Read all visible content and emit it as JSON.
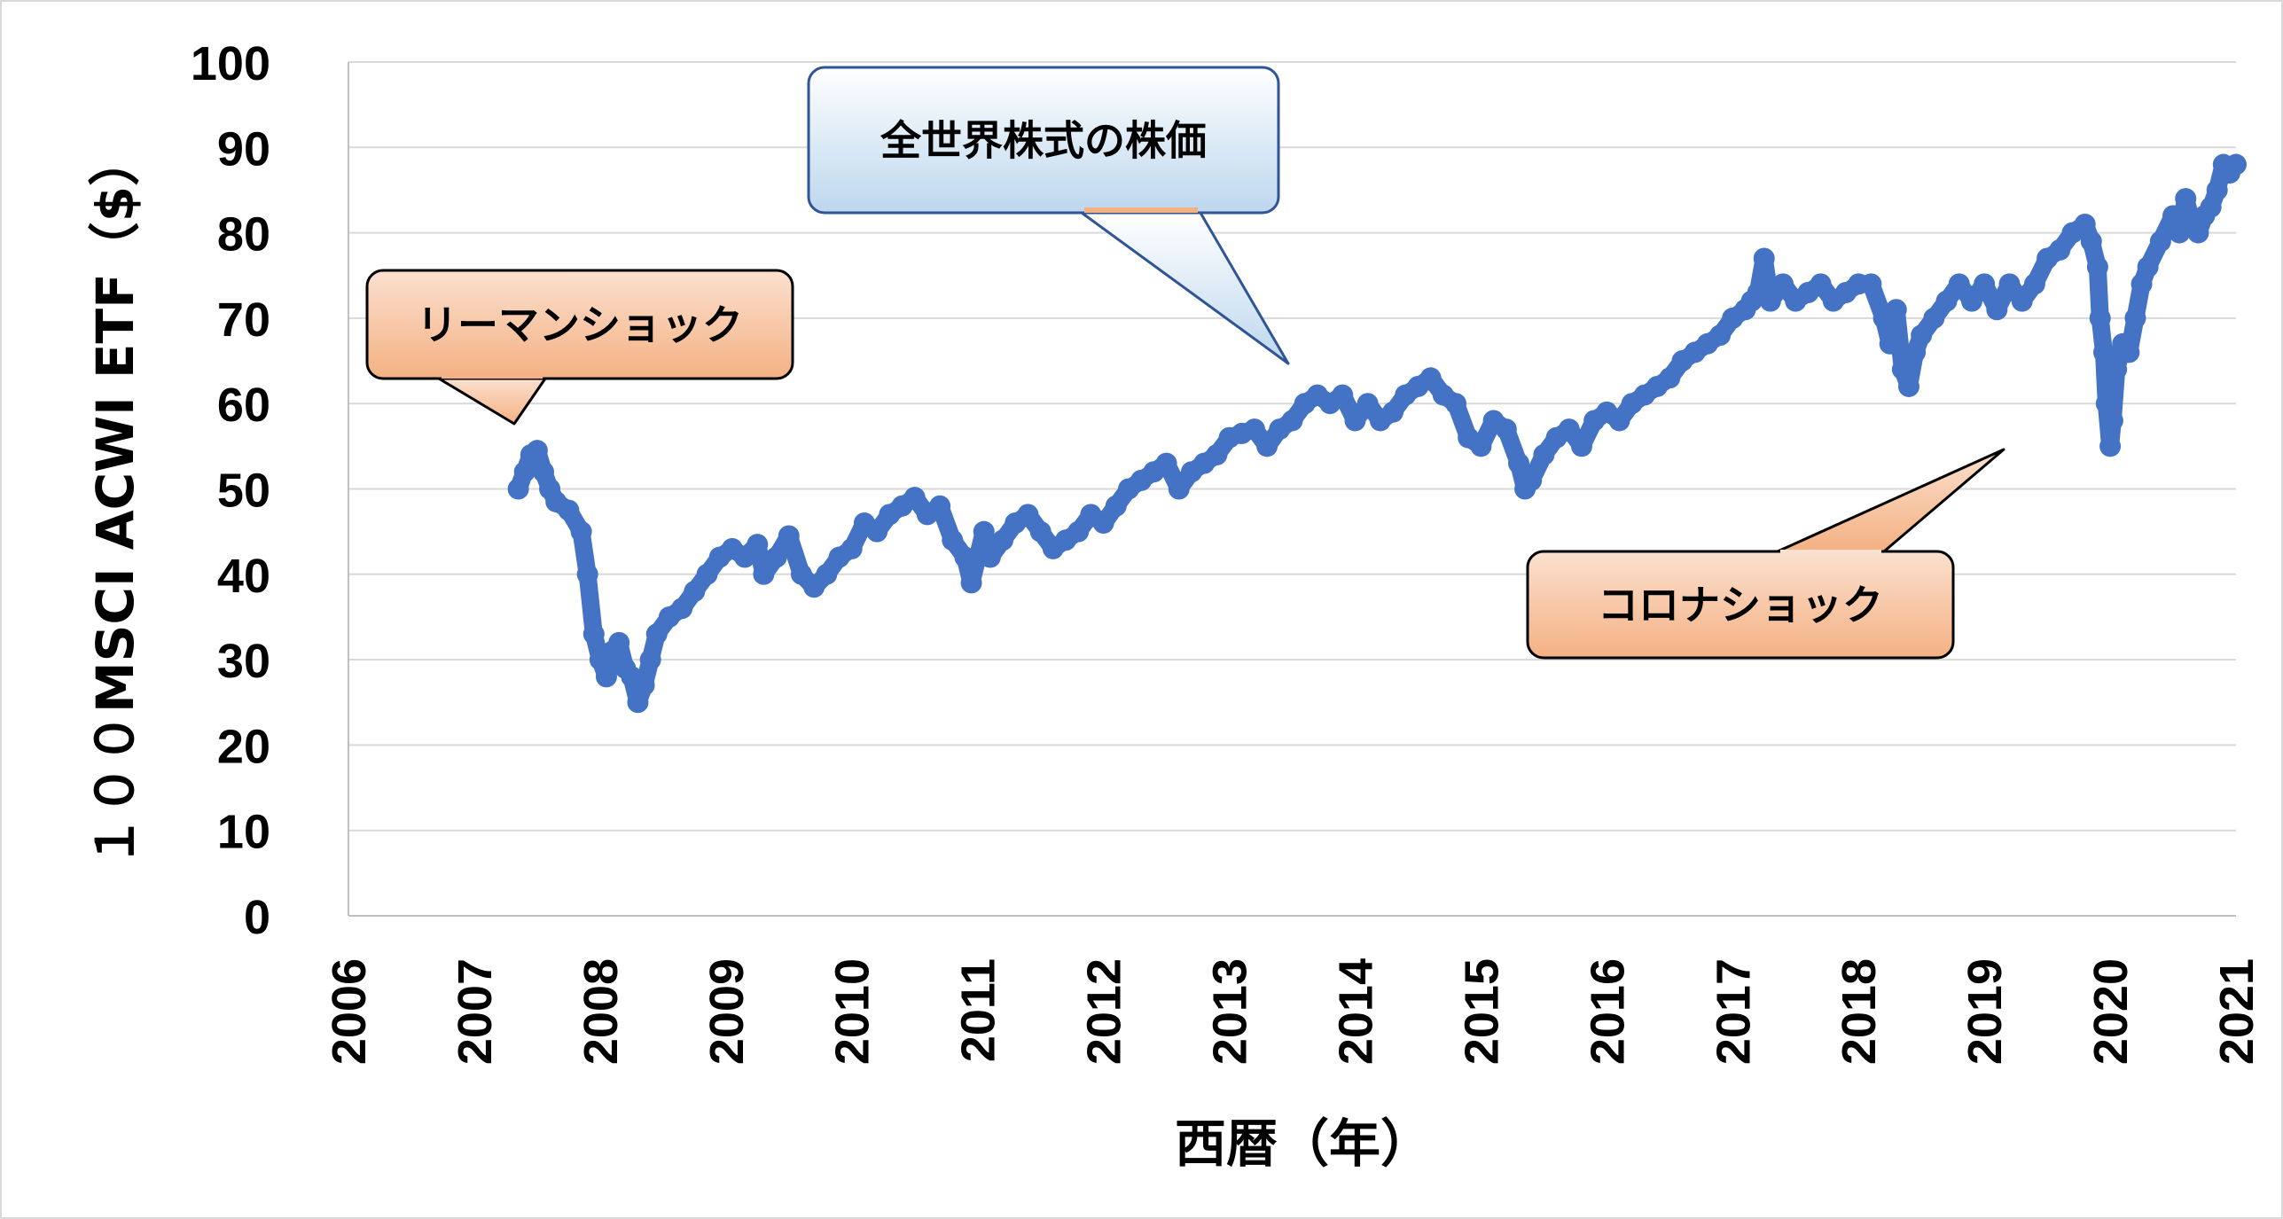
{
  "chart_data": {
    "type": "line",
    "xlabel": "西暦（年）",
    "ylabel": "１００MSCI ACWI ETF（$）",
    "xlim": [
      2006,
      2021
    ],
    "ylim": [
      0,
      100
    ],
    "x_ticks": [
      "2006",
      "2007",
      "2008",
      "2009",
      "2010",
      "2011",
      "2012",
      "2013",
      "2014",
      "2015",
      "2016",
      "2017",
      "2018",
      "2019",
      "2020",
      "2021"
    ],
    "y_ticks": [
      "0",
      "10",
      "20",
      "30",
      "40",
      "50",
      "60",
      "70",
      "80",
      "90",
      "100"
    ],
    "grid": true,
    "series_color": "#4472C4",
    "series": [
      {
        "values": [
          [
            2007.35,
            50
          ],
          [
            2007.4,
            52
          ],
          [
            2007.45,
            54
          ],
          [
            2007.5,
            54.5
          ],
          [
            2007.55,
            52
          ],
          [
            2007.6,
            50
          ],
          [
            2007.65,
            48.5
          ],
          [
            2007.75,
            47.5
          ],
          [
            2007.85,
            45
          ],
          [
            2007.9,
            40
          ],
          [
            2007.95,
            33
          ],
          [
            2008.0,
            30
          ],
          [
            2008.05,
            28
          ],
          [
            2008.1,
            31
          ],
          [
            2008.15,
            32
          ],
          [
            2008.2,
            29
          ],
          [
            2008.25,
            28
          ],
          [
            2008.3,
            25
          ],
          [
            2008.35,
            27
          ],
          [
            2008.4,
            30
          ],
          [
            2008.45,
            33
          ],
          [
            2008.55,
            35
          ],
          [
            2008.65,
            36
          ],
          [
            2008.75,
            38
          ],
          [
            2008.85,
            40
          ],
          [
            2008.95,
            42
          ],
          [
            2009.05,
            43
          ],
          [
            2009.15,
            42
          ],
          [
            2009.25,
            43.5
          ],
          [
            2009.3,
            40
          ],
          [
            2009.4,
            42
          ],
          [
            2009.5,
            44.5
          ],
          [
            2009.6,
            40
          ],
          [
            2009.7,
            38.5
          ],
          [
            2009.8,
            40
          ],
          [
            2009.9,
            42
          ],
          [
            2010.0,
            43
          ],
          [
            2010.1,
            46
          ],
          [
            2010.2,
            45
          ],
          [
            2010.3,
            47
          ],
          [
            2010.4,
            48
          ],
          [
            2010.5,
            49
          ],
          [
            2010.6,
            47
          ],
          [
            2010.7,
            48
          ],
          [
            2010.8,
            44
          ],
          [
            2010.9,
            42
          ],
          [
            2010.95,
            39
          ],
          [
            2011.0,
            42
          ],
          [
            2011.05,
            45
          ],
          [
            2011.1,
            42
          ],
          [
            2011.2,
            44
          ],
          [
            2011.3,
            46
          ],
          [
            2011.4,
            47
          ],
          [
            2011.5,
            45
          ],
          [
            2011.6,
            43
          ],
          [
            2011.7,
            44
          ],
          [
            2011.8,
            45
          ],
          [
            2011.9,
            47
          ],
          [
            2012.0,
            46
          ],
          [
            2012.1,
            48
          ],
          [
            2012.2,
            50
          ],
          [
            2012.3,
            51
          ],
          [
            2012.4,
            52
          ],
          [
            2012.5,
            53
          ],
          [
            2012.6,
            50
          ],
          [
            2012.7,
            52
          ],
          [
            2012.8,
            53
          ],
          [
            2012.9,
            54
          ],
          [
            2013.0,
            56
          ],
          [
            2013.1,
            56.5
          ],
          [
            2013.2,
            57
          ],
          [
            2013.3,
            55
          ],
          [
            2013.4,
            57
          ],
          [
            2013.5,
            58
          ],
          [
            2013.6,
            60
          ],
          [
            2013.7,
            61
          ],
          [
            2013.8,
            60
          ],
          [
            2013.9,
            61
          ],
          [
            2014.0,
            58
          ],
          [
            2014.1,
            60
          ],
          [
            2014.2,
            58
          ],
          [
            2014.3,
            59
          ],
          [
            2014.4,
            61
          ],
          [
            2014.5,
            62
          ],
          [
            2014.6,
            63
          ],
          [
            2014.7,
            61
          ],
          [
            2014.8,
            60
          ],
          [
            2014.9,
            56
          ],
          [
            2015.0,
            55
          ],
          [
            2015.1,
            58
          ],
          [
            2015.2,
            57
          ],
          [
            2015.3,
            53
          ],
          [
            2015.35,
            50
          ],
          [
            2015.4,
            51
          ],
          [
            2015.5,
            54
          ],
          [
            2015.6,
            56
          ],
          [
            2015.7,
            57
          ],
          [
            2015.8,
            55
          ],
          [
            2015.9,
            58
          ],
          [
            2016.0,
            59
          ],
          [
            2016.1,
            58
          ],
          [
            2016.2,
            60
          ],
          [
            2016.3,
            61
          ],
          [
            2016.4,
            62
          ],
          [
            2016.5,
            63
          ],
          [
            2016.6,
            65
          ],
          [
            2016.7,
            66
          ],
          [
            2016.8,
            67
          ],
          [
            2016.9,
            68
          ],
          [
            2017.0,
            70
          ],
          [
            2017.1,
            71
          ],
          [
            2017.15,
            72
          ],
          [
            2017.2,
            73
          ],
          [
            2017.25,
            77
          ],
          [
            2017.3,
            72
          ],
          [
            2017.4,
            74
          ],
          [
            2017.5,
            72
          ],
          [
            2017.6,
            73
          ],
          [
            2017.7,
            74
          ],
          [
            2017.8,
            72
          ],
          [
            2017.9,
            73
          ],
          [
            2018.0,
            74
          ],
          [
            2018.1,
            74
          ],
          [
            2018.2,
            70
          ],
          [
            2018.25,
            67
          ],
          [
            2018.3,
            71
          ],
          [
            2018.35,
            64
          ],
          [
            2018.4,
            62
          ],
          [
            2018.45,
            66
          ],
          [
            2018.5,
            68
          ],
          [
            2018.6,
            70
          ],
          [
            2018.7,
            72
          ],
          [
            2018.8,
            74
          ],
          [
            2018.9,
            72
          ],
          [
            2019.0,
            74
          ],
          [
            2019.1,
            71
          ],
          [
            2019.2,
            74
          ],
          [
            2019.3,
            72
          ],
          [
            2019.4,
            74
          ],
          [
            2019.5,
            77
          ],
          [
            2019.6,
            78
          ],
          [
            2019.7,
            80
          ],
          [
            2019.8,
            81
          ],
          [
            2019.85,
            79
          ],
          [
            2019.9,
            76
          ],
          [
            2019.92,
            70
          ],
          [
            2019.95,
            66
          ],
          [
            2019.97,
            60
          ],
          [
            2020.0,
            55
          ],
          [
            2020.02,
            58
          ],
          [
            2020.05,
            64
          ],
          [
            2020.1,
            67
          ],
          [
            2020.15,
            66
          ],
          [
            2020.2,
            70
          ],
          [
            2020.25,
            74
          ],
          [
            2020.3,
            76
          ],
          [
            2020.4,
            79
          ],
          [
            2020.5,
            82
          ],
          [
            2020.55,
            80
          ],
          [
            2020.6,
            84
          ],
          [
            2020.65,
            81
          ],
          [
            2020.7,
            80
          ],
          [
            2020.75,
            82
          ],
          [
            2020.8,
            83
          ],
          [
            2020.85,
            85
          ],
          [
            2020.9,
            88
          ],
          [
            2020.95,
            87
          ],
          [
            2021.0,
            88
          ]
        ]
      }
    ],
    "annotations": [
      {
        "text": "リーマンショック",
        "fill": "#F8CBAD"
      },
      {
        "text": "全世界株式の株価",
        "fill": "#DEEBF7"
      },
      {
        "text": "コロナショック",
        "fill": "#F8CBAD"
      }
    ]
  }
}
